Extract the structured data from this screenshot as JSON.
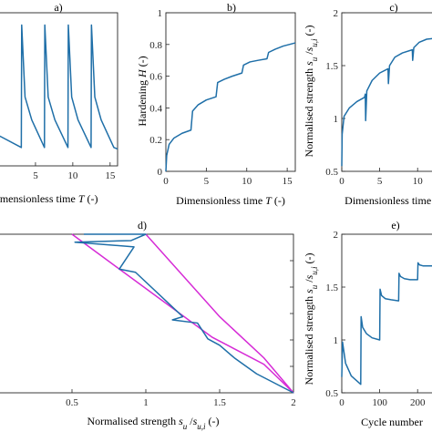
{
  "chart_data": [
    {
      "panel": "a)",
      "type": "line",
      "xlabel": "Dimensionless time T (-)",
      "ylabel": "",
      "xlim": [
        0,
        16
      ],
      "ylim": [
        0,
        1
      ],
      "xticks": [
        5,
        10,
        15
      ],
      "yticks": [],
      "series": [
        {
          "x": [
            0,
            3.1,
            3.15,
            3.6,
            4.5,
            6.2,
            6.25,
            6.7,
            7.6,
            9.35,
            9.4,
            9.85,
            10.7,
            12.45,
            12.5,
            12.95,
            13.8,
            15.5,
            16
          ],
          "y": [
            0.2,
            0.12,
            0.92,
            0.45,
            0.3,
            0.12,
            0.92,
            0.45,
            0.3,
            0.12,
            0.92,
            0.45,
            0.3,
            0.12,
            0.92,
            0.45,
            0.3,
            0.12,
            0.11
          ]
        }
      ]
    },
    {
      "panel": "b)",
      "type": "line",
      "xlabel": "Dimensionless time T (-)",
      "ylabel": "Hardening H (-)",
      "xlim": [
        0,
        16
      ],
      "ylim": [
        0,
        1
      ],
      "xticks": [
        0,
        5,
        10,
        15
      ],
      "yticks": [
        0,
        0.2,
        0.4,
        0.6,
        0.8,
        1
      ],
      "series": [
        {
          "x": [
            0,
            0.1,
            0.4,
            1,
            2,
            3.1,
            3.3,
            4,
            5,
            6.2,
            6.4,
            7.2,
            8.2,
            9.4,
            9.6,
            10.4,
            11.4,
            12.5,
            12.7,
            13.5,
            14.5,
            16
          ],
          "y": [
            0,
            0.1,
            0.17,
            0.21,
            0.24,
            0.26,
            0.38,
            0.42,
            0.45,
            0.47,
            0.56,
            0.58,
            0.6,
            0.62,
            0.67,
            0.69,
            0.7,
            0.71,
            0.75,
            0.77,
            0.79,
            0.81
          ]
        }
      ]
    },
    {
      "panel": "c)",
      "type": "line",
      "xlabel": "Dimensionless time T (-)",
      "ylabel": "Normalised strength s_u/s_u,i (-)",
      "xlim": [
        0,
        12.5
      ],
      "ylim": [
        0.5,
        2
      ],
      "xticks": [
        0,
        5,
        10
      ],
      "yticks": [
        0.5,
        1,
        1.5,
        2
      ],
      "series": [
        {
          "x": [
            0,
            0.05,
            0.3,
            1,
            2,
            3,
            3.1,
            3.15,
            3.3,
            4,
            5,
            6.1,
            6.15,
            6.3,
            7,
            8,
            9.3,
            9.35,
            9.5,
            10.2,
            11.2,
            12.5
          ],
          "y": [
            0.55,
            0.85,
            1.02,
            1.1,
            1.16,
            1.2,
            1.23,
            0.98,
            1.26,
            1.36,
            1.43,
            1.47,
            1.33,
            1.5,
            1.58,
            1.62,
            1.65,
            1.55,
            1.67,
            1.72,
            1.75,
            1.76
          ]
        }
      ]
    },
    {
      "panel": "d)",
      "type": "line",
      "xlabel": "Normalised strength s_u/s_u,i (-)",
      "ylabel": "",
      "xlim": [
        0,
        2
      ],
      "ylim": [
        0,
        1
      ],
      "xticks": [
        0.5,
        1,
        1.5,
        2
      ],
      "yticks": [],
      "series": [
        {
          "x": [
            0.58,
            1.0,
            0.9,
            0.52,
            0.92,
            0.82,
            0.93,
            1.25,
            1.18,
            1.35,
            1.42,
            1.5,
            1.6,
            1.75,
            2.0
          ],
          "y": [
            1.0,
            1.0,
            0.96,
            0.95,
            0.92,
            0.78,
            0.76,
            0.48,
            0.46,
            0.44,
            0.34,
            0.3,
            0.22,
            0.12,
            0.0
          ]
        },
        {
          "x": [
            0.5,
            1.45,
            1.8,
            2.0
          ],
          "y": [
            1.0,
            0.35,
            0.18,
            0.0
          ]
        },
        {
          "x": [
            1.0,
            1.5,
            1.8,
            2.0
          ],
          "y": [
            1.0,
            0.48,
            0.22,
            0.0
          ]
        }
      ]
    },
    {
      "panel": "e)",
      "type": "line",
      "xlabel": "Cycle number",
      "ylabel": "Normalised strength s_u/s_u,i (-)",
      "xlim": [
        0,
        250
      ],
      "ylim": [
        0.5,
        2
      ],
      "xticks": [
        0,
        100
      ],
      "xtick_labels_partial": [
        "0",
        "100",
        "200"
      ],
      "yticks": [
        0.5,
        1,
        1.5,
        2
      ],
      "series": [
        {
          "x": [
            0,
            2,
            10,
            25,
            50,
            51,
            55,
            65,
            80,
            100,
            101,
            105,
            115,
            130,
            150,
            151,
            155,
            165,
            180,
            200,
            201,
            205,
            215,
            230,
            245
          ],
          "y": [
            0.65,
            0.98,
            0.78,
            0.66,
            0.58,
            1.22,
            1.12,
            1.06,
            1.02,
            1.0,
            1.48,
            1.42,
            1.39,
            1.38,
            1.37,
            1.63,
            1.6,
            1.58,
            1.57,
            1.57,
            1.73,
            1.71,
            1.7,
            1.7,
            1.7
          ]
        }
      ]
    }
  ],
  "labels": {
    "a_panel": "a)",
    "b_panel": "b)",
    "c_panel": "c)",
    "d_panel": "d)",
    "e_panel": "e)",
    "a_xlabel": "imensionless time T (-)",
    "b_xlabel": "Dimensionless time T (-)",
    "b_ylabel": "Hardening H (-)",
    "c_xlabel": "Dimensionless time T (-)",
    "c_ylabel": "Normalised strength s_u /s_u,i (-)",
    "d_xlabel": "Normalised strength s_u /s_u,i (-)",
    "e_xlabel": "Cycle number",
    "e_ylabel": "Normalised strength s_u /s_u,i (-)"
  },
  "colors": {
    "series": "#1f6fa8",
    "envelope": "#d62bd6",
    "axis": "#262626"
  }
}
